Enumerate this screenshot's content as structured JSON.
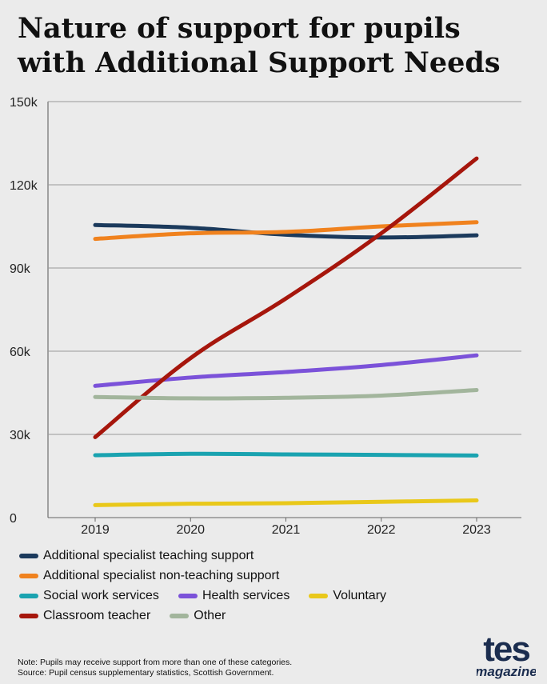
{
  "chart_data": {
    "type": "line",
    "title": [
      "Nature of support for pupils",
      "with Additional Support Needs"
    ],
    "x": [
      "2019",
      "2020",
      "2021",
      "2022",
      "2023"
    ],
    "ylim": [
      0,
      150000
    ],
    "yticks": [
      0,
      30000,
      60000,
      90000,
      120000,
      150000
    ],
    "ytick_labels": [
      "0",
      "30k",
      "60k",
      "90k",
      "120k",
      "150k"
    ],
    "grid": true,
    "legend_position": "bottom",
    "series": [
      {
        "name": "Additional specialist teaching support",
        "color": "#1b3a5c",
        "values": [
          105500,
          104500,
          102000,
          101000,
          101800
        ]
      },
      {
        "name": "Additional specialist non-teaching support",
        "color": "#f0821e",
        "values": [
          100500,
          102500,
          103000,
          105000,
          106500
        ]
      },
      {
        "name": "Social work services",
        "color": "#1aa3b0",
        "values": [
          22500,
          23000,
          22800,
          22600,
          22400
        ]
      },
      {
        "name": "Health services",
        "color": "#7b52d9",
        "values": [
          47500,
          50500,
          52500,
          55000,
          58500
        ]
      },
      {
        "name": "Voluntary",
        "color": "#e9c81a",
        "values": [
          4500,
          5000,
          5200,
          5700,
          6200
        ]
      },
      {
        "name": "Classroom teacher",
        "color": "#a6160c",
        "values": [
          29000,
          57500,
          79000,
          102500,
          129500
        ]
      },
      {
        "name": "Other",
        "color": "#a2b59c",
        "values": [
          43500,
          43000,
          43200,
          44000,
          46000
        ]
      }
    ]
  },
  "legend_rows": [
    [
      0
    ],
    [
      1
    ],
    [
      2,
      3,
      4
    ],
    [
      5,
      6
    ]
  ],
  "notes": {
    "line1": "Note:  Pupils may receive support from more than one of these categories.",
    "line2": "Source: Pupil census supplementary statistics, Scottish Government."
  },
  "brand": {
    "logo_top": "tes",
    "logo_bottom": "magazine",
    "color": "#1b2d4f"
  }
}
